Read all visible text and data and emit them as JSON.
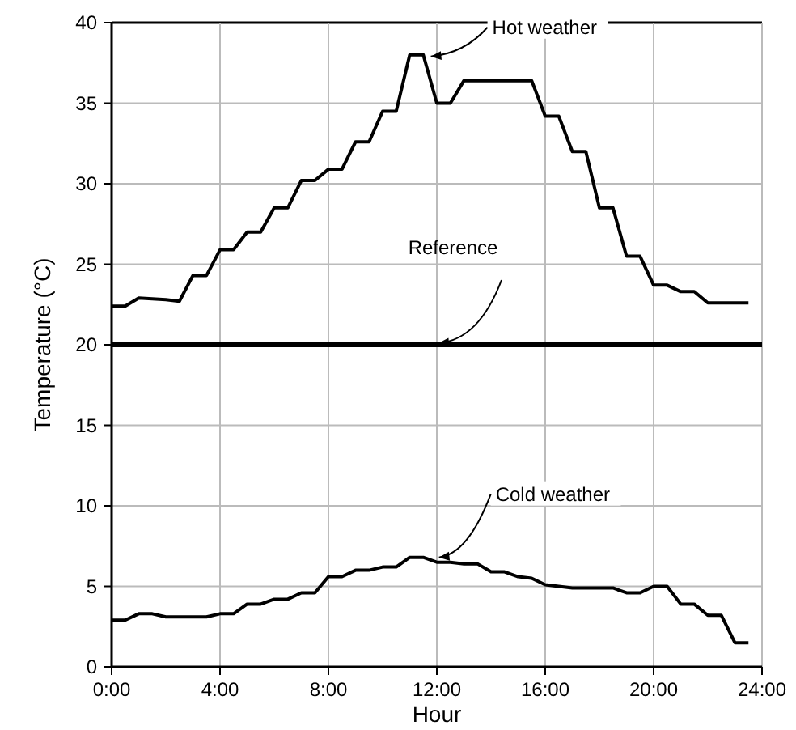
{
  "chart_data": {
    "type": "line",
    "xlabel": "Hour",
    "ylabel": "Temperature (°C)",
    "xlim": [
      0,
      24
    ],
    "xticks": [
      {
        "value": 0,
        "label": "0:00"
      },
      {
        "value": 4,
        "label": "4:00"
      },
      {
        "value": 8,
        "label": "8:00"
      },
      {
        "value": 12,
        "label": "12:00"
      },
      {
        "value": 16,
        "label": "16:00"
      },
      {
        "value": 20,
        "label": "20:00"
      },
      {
        "value": 24,
        "label": "24:00"
      }
    ],
    "ylim": [
      0,
      40
    ],
    "yticks": [
      0,
      5,
      10,
      15,
      20,
      25,
      30,
      35,
      40
    ],
    "grid": true,
    "marker": "none",
    "line_style": "solid",
    "series": [
      {
        "color": "#000000",
        "x": [
          0,
          0.5,
          1,
          2,
          2.5,
          3,
          3.5,
          4,
          4.5,
          5,
          5.5,
          6,
          6.5,
          7,
          7.5,
          8,
          8.5,
          9,
          9.5,
          10,
          10.5,
          11,
          11.5,
          12,
          12.5,
          13,
          15.5,
          16,
          16.5,
          17,
          17.5,
          18,
          18.5,
          19,
          19.5,
          20,
          20.5,
          21,
          21.5,
          22,
          23.5
        ],
        "values": [
          22.4,
          22.4,
          22.9,
          22.8,
          22.7,
          24.3,
          24.3,
          25.9,
          25.9,
          27,
          27,
          28.5,
          28.5,
          30.2,
          30.2,
          30.9,
          30.9,
          32.6,
          32.6,
          34.5,
          34.5,
          38,
          38,
          35,
          35,
          36.4,
          36.4,
          34.2,
          34.2,
          32,
          32,
          28.5,
          28.5,
          25.5,
          25.5,
          23.7,
          23.7,
          23.3,
          23.3,
          22.6,
          22.6
        ]
      },
      {
        "color": "#000000",
        "x": [
          0,
          0.5,
          1,
          1.5,
          2,
          3.5,
          4,
          4.5,
          5,
          5.5,
          6,
          6.5,
          7,
          7.5,
          8,
          8.5,
          9,
          9.5,
          10,
          10.5,
          11,
          11.5,
          12,
          12.5,
          13,
          13.5,
          14,
          14.5,
          15,
          15.5,
          16,
          16.5,
          17,
          18.5,
          19,
          19.5,
          20,
          20.5,
          21,
          21.5,
          22,
          22.5,
          23,
          23.5
        ],
        "values": [
          2.9,
          2.9,
          3.3,
          3.3,
          3.1,
          3.1,
          3.3,
          3.3,
          3.9,
          3.9,
          4.2,
          4.2,
          4.6,
          4.6,
          5.6,
          5.6,
          6,
          6,
          6.2,
          6.2,
          6.8,
          6.8,
          6.5,
          6.5,
          6.4,
          6.4,
          5.9,
          5.9,
          5.6,
          5.5,
          5.1,
          5,
          4.9,
          4.9,
          4.6,
          4.6,
          5,
          5,
          3.9,
          3.9,
          3.2,
          3.2,
          1.5,
          1.5
        ]
      }
    ],
    "ref_lines": [
      {
        "axis": "y",
        "value": 20,
        "label": "Reference",
        "color": "#000000"
      }
    ],
    "annotations": [
      {
        "text": "Hot weather",
        "x": 11.6,
        "y": 37.8
      },
      {
        "text": "Cold weather",
        "x": 11.9,
        "y": 6.7
      }
    ]
  }
}
